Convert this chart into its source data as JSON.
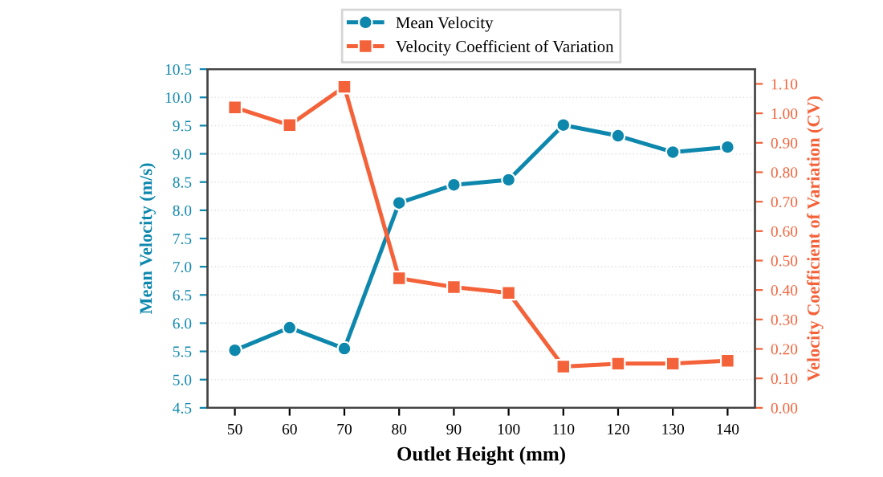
{
  "chart_data": {
    "type": "line",
    "xlabel": "Outlet Height (mm)",
    "ylabel": "Mean Velocity (m/s)",
    "y2label": "Velocity Coefficient of Variation (CV)",
    "x": [
      50,
      60,
      70,
      80,
      90,
      100,
      110,
      120,
      130,
      140
    ],
    "series": [
      {
        "name": "Mean Velocity",
        "color": "#0e87ad",
        "marker": "circle",
        "values": [
          5.52,
          5.92,
          5.55,
          8.13,
          8.45,
          8.54,
          9.51,
          9.32,
          9.03,
          9.12
        ]
      },
      {
        "name": "Velocity Coefficient of Variation",
        "color": "#f4623a",
        "marker": "square",
        "axis": "y2",
        "values": [
          1.02,
          0.96,
          1.09,
          0.44,
          0.41,
          0.39,
          0.14,
          0.15,
          0.15,
          0.16
        ]
      }
    ],
    "xlim": [
      45,
      145
    ],
    "xticks": [
      50,
      60,
      70,
      80,
      90,
      100,
      110,
      120,
      130,
      140
    ],
    "ylim": [
      4.5,
      10.5
    ],
    "yticks": [
      {
        "value": 4.5,
        "label": "4.5"
      },
      {
        "value": 5,
        "label": "5.0"
      },
      {
        "value": 5.5,
        "label": "5.5"
      },
      {
        "value": 6,
        "label": "6.0"
      },
      {
        "value": 6.5,
        "label": "6.5"
      },
      {
        "value": 7,
        "label": "7.0"
      },
      {
        "value": 7.5,
        "label": "7.5"
      },
      {
        "value": 8,
        "label": "8.0"
      },
      {
        "value": 8.5,
        "label": "8.5"
      },
      {
        "value": 9,
        "label": "9.0"
      },
      {
        "value": 9.5,
        "label": "9.5"
      },
      {
        "value": 10,
        "label": "10.0"
      },
      {
        "value": 10.5,
        "label": "10.5"
      }
    ],
    "y2lim": [
      0,
      1.15
    ],
    "y2ticks": [
      {
        "value": 0,
        "label": "0.00"
      },
      {
        "value": 0.1,
        "label": "0.10"
      },
      {
        "value": 0.2,
        "label": "0.20"
      },
      {
        "value": 0.3,
        "label": "0.30"
      },
      {
        "value": 0.4,
        "label": "0.40"
      },
      {
        "value": 0.5,
        "label": "0.50"
      },
      {
        "value": 0.6,
        "label": "0.60"
      },
      {
        "value": 0.7,
        "label": "0.70"
      },
      {
        "value": 0.8,
        "label": "0.80"
      },
      {
        "value": 0.9,
        "label": "0.90"
      },
      {
        "value": 1.0,
        "label": "1.00"
      },
      {
        "value": 1.1,
        "label": "1.10"
      }
    ],
    "grid": "y",
    "legend": "top",
    "line_style": "solid"
  }
}
